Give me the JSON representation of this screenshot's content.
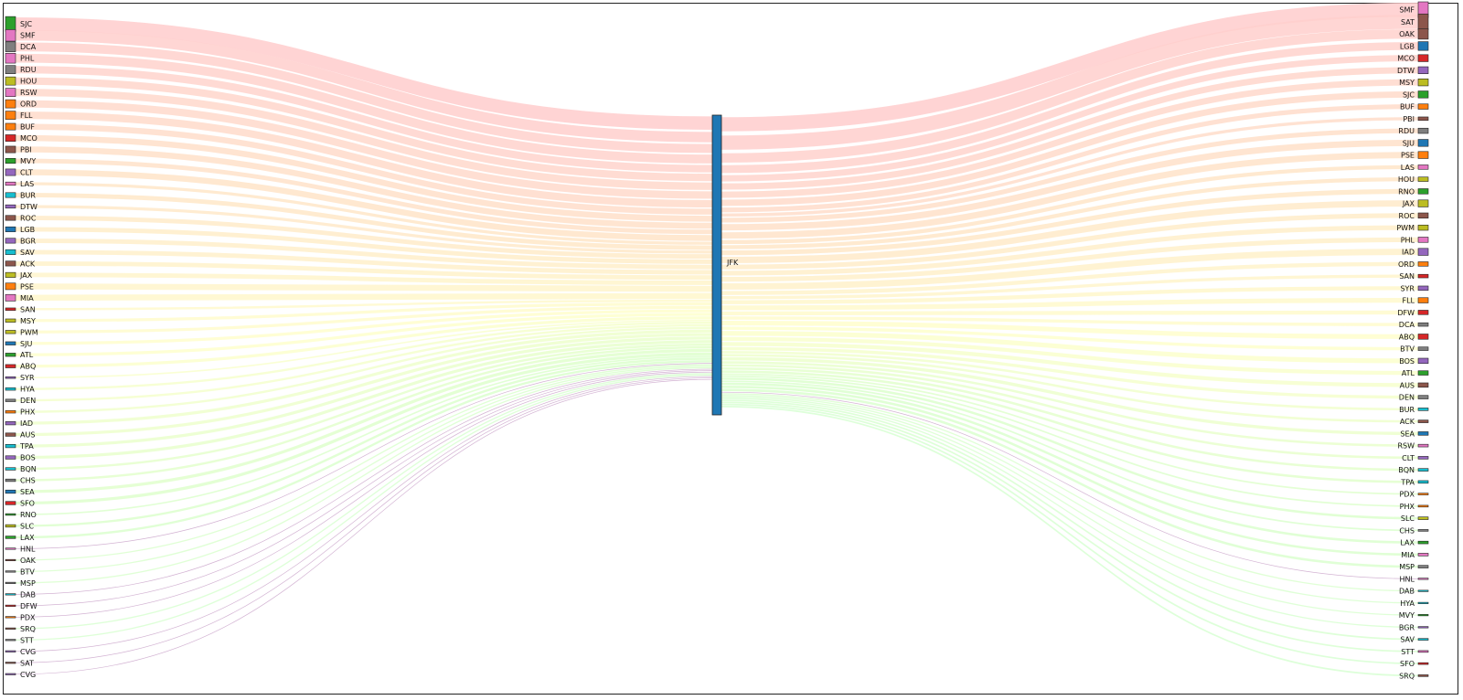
{
  "chart_data": {
    "type": "sankey",
    "hub": {
      "label": "JFK",
      "color": "#1f77b4"
    },
    "origins": [
      {
        "label": "SJC",
        "value": 9,
        "color": "#2ca02c"
      },
      {
        "label": "SMF",
        "value": 7,
        "color": "#e377c2"
      },
      {
        "label": "DCA",
        "value": 6,
        "color": "#7f7f7f"
      },
      {
        "label": "PHL",
        "value": 6,
        "color": "#e377c2"
      },
      {
        "label": "RDU",
        "value": 5,
        "color": "#7f7f7f"
      },
      {
        "label": "HOU",
        "value": 5,
        "color": "#bcbd22"
      },
      {
        "label": "RSW",
        "value": 5,
        "color": "#e377c2"
      },
      {
        "label": "ORD",
        "value": 5,
        "color": "#ff7f0e"
      },
      {
        "label": "FLL",
        "value": 5,
        "color": "#ff7f0e"
      },
      {
        "label": "BUF",
        "value": 4,
        "color": "#ff7f0e"
      },
      {
        "label": "MCO",
        "value": 4,
        "color": "#d62728"
      },
      {
        "label": "PBI",
        "value": 4,
        "color": "#8c564b"
      },
      {
        "label": "MVY",
        "value": 3,
        "color": "#2ca02c"
      },
      {
        "label": "CLT",
        "value": 4,
        "color": "#9467bd"
      },
      {
        "label": "LAS",
        "value": 2,
        "color": "#e377c2"
      },
      {
        "label": "BUR",
        "value": 3,
        "color": "#17becf"
      },
      {
        "label": "DTW",
        "value": 2,
        "color": "#9467bd"
      },
      {
        "label": "ROC",
        "value": 3,
        "color": "#8c564b"
      },
      {
        "label": "LGB",
        "value": 3,
        "color": "#1f77b4"
      },
      {
        "label": "BGR",
        "value": 3,
        "color": "#9467bd"
      },
      {
        "label": "SAV",
        "value": 3,
        "color": "#17becf"
      },
      {
        "label": "ACK",
        "value": 3,
        "color": "#8c564b"
      },
      {
        "label": "JAX",
        "value": 3,
        "color": "#bcbd22"
      },
      {
        "label": "PSE",
        "value": 4,
        "color": "#ff7f0e"
      },
      {
        "label": "MIA",
        "value": 4,
        "color": "#e377c2"
      },
      {
        "label": "SAN",
        "value": 1.5,
        "color": "#d62728"
      },
      {
        "label": "MSY",
        "value": 2,
        "color": "#bcbd22"
      },
      {
        "label": "PWM",
        "value": 2,
        "color": "#bcbd22"
      },
      {
        "label": "SJU",
        "value": 2,
        "color": "#1f77b4"
      },
      {
        "label": "ATL",
        "value": 2,
        "color": "#2ca02c"
      },
      {
        "label": "ABQ",
        "value": 2,
        "color": "#d62728"
      },
      {
        "label": "SYR",
        "value": 1,
        "color": "#9467bd"
      },
      {
        "label": "HYA",
        "value": 1.5,
        "color": "#17becf"
      },
      {
        "label": "DEN",
        "value": 1.5,
        "color": "#7f7f7f"
      },
      {
        "label": "PHX",
        "value": 1.5,
        "color": "#ff7f0e"
      },
      {
        "label": "IAD",
        "value": 2,
        "color": "#9467bd"
      },
      {
        "label": "AUS",
        "value": 2,
        "color": "#8c564b"
      },
      {
        "label": "TPA",
        "value": 2,
        "color": "#17becf"
      },
      {
        "label": "BOS",
        "value": 2,
        "color": "#9467bd"
      },
      {
        "label": "BQN",
        "value": 1.5,
        "color": "#17becf"
      },
      {
        "label": "CHS",
        "value": 1.5,
        "color": "#7f7f7f"
      },
      {
        "label": "SEA",
        "value": 2,
        "color": "#1f77b4"
      },
      {
        "label": "SFO",
        "value": 2,
        "color": "#d62728"
      },
      {
        "label": "RNO",
        "value": 1,
        "color": "#2ca02c"
      },
      {
        "label": "SLC",
        "value": 1.5,
        "color": "#bcbd22"
      },
      {
        "label": "LAX",
        "value": 1.5,
        "color": "#2ca02c"
      },
      {
        "label": "HNL",
        "value": 0.3,
        "color": "#e377c2"
      },
      {
        "label": "OAK",
        "value": 0.8,
        "color": "#8c564b"
      },
      {
        "label": "BTV",
        "value": 0.8,
        "color": "#7f7f7f"
      },
      {
        "label": "MSP",
        "value": 0.8,
        "color": "#7f7f7f"
      },
      {
        "label": "DAB",
        "value": 0.3,
        "color": "#17becf"
      },
      {
        "label": "DFW",
        "value": 0.3,
        "color": "#d62728"
      },
      {
        "label": "PDX",
        "value": 0.3,
        "color": "#ff7f0e"
      },
      {
        "label": "SRQ",
        "value": 0.8,
        "color": "#8c564b"
      },
      {
        "label": "STT",
        "value": 0.8,
        "color": "#7f7f7f"
      },
      {
        "label": "CVG",
        "value": 0.3,
        "color": "#9467bd"
      },
      {
        "label": "SAT",
        "value": 0.3,
        "color": "#8c564b"
      },
      {
        "label": "CVG",
        "value": 0.3,
        "color": "#9467bd"
      }
    ],
    "destinations": [
      {
        "label": "SMF",
        "value": 9,
        "color": "#e377c2"
      },
      {
        "label": "SAT",
        "value": 9,
        "color": "#8c564b"
      },
      {
        "label": "OAK",
        "value": 6,
        "color": "#8c564b"
      },
      {
        "label": "LGB",
        "value": 5,
        "color": "#1f77b4"
      },
      {
        "label": "MCO",
        "value": 4,
        "color": "#d62728"
      },
      {
        "label": "DTW",
        "value": 4,
        "color": "#9467bd"
      },
      {
        "label": "MSY",
        "value": 4,
        "color": "#bcbd22"
      },
      {
        "label": "SJC",
        "value": 4,
        "color": "#2ca02c"
      },
      {
        "label": "BUF",
        "value": 3,
        "color": "#ff7f0e"
      },
      {
        "label": "PBI",
        "value": 2,
        "color": "#8c564b"
      },
      {
        "label": "RDU",
        "value": 3,
        "color": "#7f7f7f"
      },
      {
        "label": "SJU",
        "value": 4,
        "color": "#1f77b4"
      },
      {
        "label": "PSE",
        "value": 4,
        "color": "#ff7f0e"
      },
      {
        "label": "LAS",
        "value": 2.5,
        "color": "#e377c2"
      },
      {
        "label": "HOU",
        "value": 2.5,
        "color": "#bcbd22"
      },
      {
        "label": "RNO",
        "value": 3,
        "color": "#2ca02c"
      },
      {
        "label": "JAX",
        "value": 4,
        "color": "#bcbd22"
      },
      {
        "label": "ROC",
        "value": 3,
        "color": "#8c564b"
      },
      {
        "label": "PWM",
        "value": 3,
        "color": "#bcbd22"
      },
      {
        "label": "PHL",
        "value": 3,
        "color": "#e377c2"
      },
      {
        "label": "IAD",
        "value": 4,
        "color": "#9467bd"
      },
      {
        "label": "ORD",
        "value": 2.5,
        "color": "#ff7f0e"
      },
      {
        "label": "SAN",
        "value": 2,
        "color": "#d62728"
      },
      {
        "label": "SYR",
        "value": 2.5,
        "color": "#9467bd"
      },
      {
        "label": "FLL",
        "value": 3,
        "color": "#ff7f0e"
      },
      {
        "label": "DFW",
        "value": 2.5,
        "color": "#d62728"
      },
      {
        "label": "DCA",
        "value": 2,
        "color": "#7f7f7f"
      },
      {
        "label": "ABQ",
        "value": 3,
        "color": "#d62728"
      },
      {
        "label": "BTV",
        "value": 2,
        "color": "#7f7f7f"
      },
      {
        "label": "BOS",
        "value": 3,
        "color": "#9467bd"
      },
      {
        "label": "ATL",
        "value": 2.5,
        "color": "#2ca02c"
      },
      {
        "label": "AUS",
        "value": 2.5,
        "color": "#8c564b"
      },
      {
        "label": "DEN",
        "value": 2,
        "color": "#7f7f7f"
      },
      {
        "label": "BUR",
        "value": 1.5,
        "color": "#17becf"
      },
      {
        "label": "ACK",
        "value": 1.5,
        "color": "#8c564b"
      },
      {
        "label": "SEA",
        "value": 2,
        "color": "#1f77b4"
      },
      {
        "label": "RSW",
        "value": 1.5,
        "color": "#e377c2"
      },
      {
        "label": "CLT",
        "value": 1.5,
        "color": "#9467bd"
      },
      {
        "label": "BQN",
        "value": 1.5,
        "color": "#17becf"
      },
      {
        "label": "TPA",
        "value": 1.5,
        "color": "#17becf"
      },
      {
        "label": "PDX",
        "value": 1,
        "color": "#ff7f0e"
      },
      {
        "label": "PHX",
        "value": 1,
        "color": "#ff7f0e"
      },
      {
        "label": "SLC",
        "value": 1.5,
        "color": "#bcbd22"
      },
      {
        "label": "CHS",
        "value": 1,
        "color": "#7f7f7f"
      },
      {
        "label": "LAX",
        "value": 1.5,
        "color": "#2ca02c"
      },
      {
        "label": "MIA",
        "value": 1.5,
        "color": "#e377c2"
      },
      {
        "label": "MSP",
        "value": 1.5,
        "color": "#7f7f7f"
      },
      {
        "label": "HNL",
        "value": 0.3,
        "color": "#e377c2"
      },
      {
        "label": "DAB",
        "value": 0.5,
        "color": "#17becf"
      },
      {
        "label": "HYA",
        "value": 0.5,
        "color": "#17becf"
      },
      {
        "label": "MVY",
        "value": 0.5,
        "color": "#2ca02c"
      },
      {
        "label": "BGR",
        "value": 0.5,
        "color": "#9467bd"
      },
      {
        "label": "SAV",
        "value": 1,
        "color": "#17becf"
      },
      {
        "label": "STT",
        "value": 1,
        "color": "#e377c2"
      },
      {
        "label": "SFO",
        "value": 1,
        "color": "#d62728"
      },
      {
        "label": "SRQ",
        "value": 1,
        "color": "#8c564b"
      }
    ]
  }
}
